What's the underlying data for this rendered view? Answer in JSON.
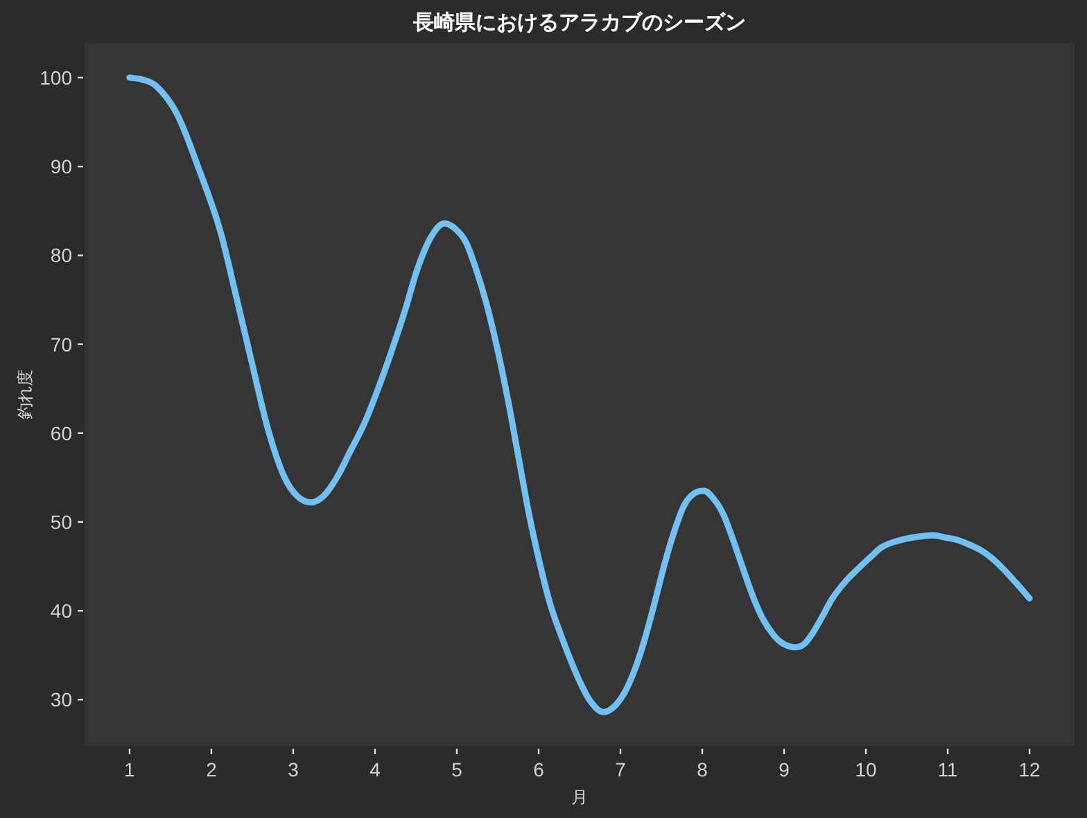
{
  "chart_data": {
    "type": "line",
    "title": "長崎県におけるアラカブのシーズン",
    "xlabel": "月",
    "ylabel": "釣れ度",
    "series": [
      {
        "color": "#72bff2",
        "x": [
          1,
          1.15,
          1.32,
          1.58,
          1.84,
          2.11,
          2.3,
          2.5,
          2.69,
          2.89,
          3.05,
          3.22,
          3.38,
          3.54,
          3.7,
          3.87,
          4.03,
          4.19,
          4.36,
          4.52,
          4.68,
          4.85,
          4.98,
          5.11,
          5.24,
          5.37,
          5.5,
          5.63,
          5.75,
          5.88,
          6.01,
          6.14,
          6.26,
          6.38,
          6.5,
          6.62,
          6.79,
          6.92,
          7.05,
          7.18,
          7.3,
          7.42,
          7.54,
          7.66,
          7.78,
          7.9,
          8.02,
          8.14,
          8.26,
          8.38,
          8.5,
          8.62,
          8.74,
          8.87,
          8.99,
          9.14,
          9.25,
          9.35,
          9.47,
          9.59,
          9.75,
          9.9,
          10.05,
          10.2,
          10.4,
          10.6,
          10.82,
          11,
          11.11,
          11.25,
          11.39,
          11.53,
          11.67,
          11.83,
          12
        ],
        "values": [
          100,
          99.8,
          99.1,
          95.9,
          89.9,
          82.7,
          75.5,
          67.7,
          60.5,
          55.1,
          52.9,
          52.2,
          53,
          55.1,
          58,
          61.1,
          64.8,
          68.9,
          73.6,
          78.5,
          82,
          83.6,
          83,
          81.5,
          78.3,
          74.3,
          69.3,
          63.5,
          57.5,
          51,
          45.5,
          40.8,
          37.6,
          34.7,
          32.1,
          30,
          28.6,
          29.2,
          30.8,
          33.5,
          36.9,
          41,
          45.3,
          49,
          51.9,
          53.2,
          53.5,
          52.6,
          50.8,
          47.9,
          44.7,
          41.6,
          39.1,
          37.3,
          36.3,
          35.9,
          36.3,
          37.5,
          39.4,
          41.4,
          43.3,
          44.7,
          46,
          47.2,
          47.9,
          48.3,
          48.5,
          48.2,
          48,
          47.5,
          46.9,
          46,
          44.8,
          43.2,
          41.4
        ]
      }
    ],
    "xlim": [
      0.45,
      12.55
    ],
    "ylim": [
      24.8,
      103.9
    ],
    "xticks": [
      1,
      2,
      3,
      4,
      5,
      6,
      7,
      8,
      9,
      10,
      11,
      12
    ],
    "yticks": [
      30,
      40,
      50,
      60,
      70,
      80,
      90,
      100
    ],
    "grid": false,
    "marker": "none",
    "line_style": "solid"
  }
}
